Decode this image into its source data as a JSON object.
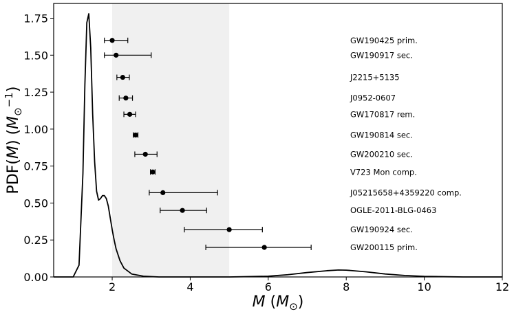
{
  "chart_data": {
    "type": "line",
    "title": "",
    "xlabel": "M (M_⊙)",
    "ylabel": "PDF(M) (M_⊙^-1)",
    "xlim": [
      0.5,
      12
    ],
    "ylim": [
      0,
      1.85
    ],
    "x_ticks": [
      2,
      4,
      6,
      8,
      10,
      12
    ],
    "x_tick_labels": [
      "2",
      "4",
      "6",
      "8",
      "10",
      "12"
    ],
    "y_ticks": [
      0.0,
      0.25,
      0.5,
      0.75,
      1.0,
      1.25,
      1.5,
      1.75
    ],
    "y_tick_labels": [
      "0.00",
      "0.25",
      "0.50",
      "0.75",
      "1.00",
      "1.25",
      "1.50",
      "1.75"
    ],
    "grid": false,
    "shaded_region": {
      "x": [
        2,
        5
      ],
      "color": "#f0f0f0"
    },
    "series": [
      {
        "color": "#000000",
        "x": [
          0.5,
          1.0,
          1.15,
          1.25,
          1.3,
          1.35,
          1.4,
          1.45,
          1.5,
          1.55,
          1.6,
          1.65,
          1.7,
          1.75,
          1.8,
          1.85,
          1.9,
          1.95,
          2.0,
          2.05,
          2.1,
          2.2,
          2.3,
          2.5,
          2.8,
          3.2,
          4.0,
          5.0,
          6.0,
          6.5,
          7.0,
          7.5,
          7.8,
          8.0,
          8.5,
          9.0,
          9.5,
          10.0,
          11.0,
          12.0
        ],
        "y": [
          0.0,
          0.0,
          0.08,
          0.7,
          1.3,
          1.72,
          1.78,
          1.55,
          1.1,
          0.78,
          0.58,
          0.52,
          0.53,
          0.55,
          0.55,
          0.53,
          0.48,
          0.4,
          0.32,
          0.25,
          0.19,
          0.11,
          0.06,
          0.02,
          0.005,
          0.0,
          0.0,
          0.0,
          0.005,
          0.015,
          0.03,
          0.042,
          0.047,
          0.046,
          0.035,
          0.02,
          0.01,
          0.004,
          0.0,
          0.0
        ]
      }
    ],
    "error_points": [
      {
        "label": "GW190425 prim.",
        "x": 2.0,
        "xerr": [
          0.2,
          0.4
        ],
        "y": 1.6
      },
      {
        "label": "GW190917 sec.",
        "x": 2.1,
        "xerr": [
          0.3,
          0.9
        ],
        "y": 1.5
      },
      {
        "label": "J2215+5135",
        "x": 2.27,
        "xerr": [
          0.15,
          0.17
        ],
        "y": 1.35
      },
      {
        "label": "J0952-0607",
        "x": 2.35,
        "xerr": [
          0.17,
          0.17
        ],
        "y": 1.21
      },
      {
        "label": "GW170817 rem.",
        "x": 2.45,
        "xerr": [
          0.15,
          0.15
        ],
        "y": 1.1
      },
      {
        "label": "GW190814 sec.",
        "x": 2.6,
        "xerr": [
          0.06,
          0.06
        ],
        "y": 0.96
      },
      {
        "label": "GW200210 sec.",
        "x": 2.85,
        "xerr": [
          0.27,
          0.3
        ],
        "y": 0.83
      },
      {
        "label": "V723 Mon comp.",
        "x": 3.04,
        "xerr": [
          0.06,
          0.06
        ],
        "y": 0.71
      },
      {
        "label": "J05215658+4359220 comp.",
        "x": 3.3,
        "xerr": [
          0.35,
          1.4
        ],
        "y": 0.57
      },
      {
        "label": "OGLE-2011-BLG-0463",
        "x": 3.8,
        "xerr": [
          0.57,
          0.62
        ],
        "y": 0.45
      },
      {
        "label": "GW190924 sec.",
        "x": 5.0,
        "xerr": [
          1.15,
          0.85
        ],
        "y": 0.32
      },
      {
        "label": "GW200115 prim.",
        "x": 5.9,
        "xerr": [
          1.5,
          1.2
        ],
        "y": 0.2
      }
    ],
    "labels": [
      "GW190425 prim.",
      "GW190917 sec.",
      "J2215+5135",
      "J0952-0607",
      "GW170817 rem.",
      "GW190814 sec.",
      "GW200210 sec.",
      "V723 Mon comp.",
      "J05215658+4359220 comp.",
      "OGLE-2011-BLG-0463",
      "GW190924 sec.",
      "GW200115 prim."
    ]
  }
}
